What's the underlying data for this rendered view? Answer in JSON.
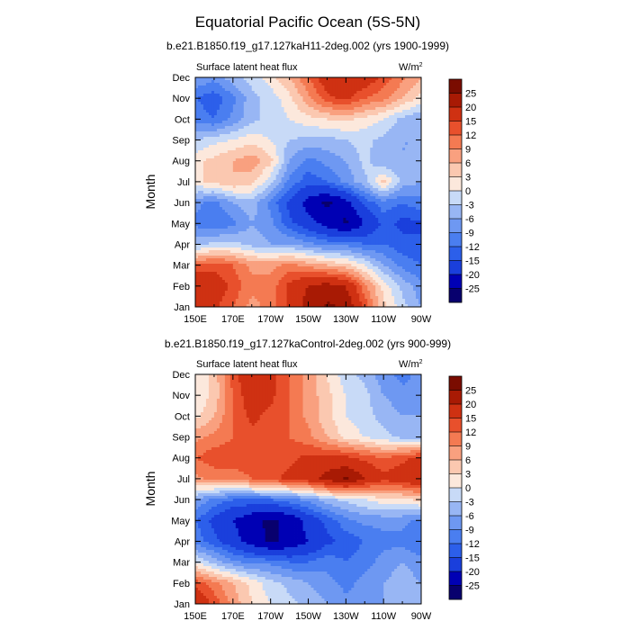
{
  "figure": {
    "title": "Equatorial Pacific Ocean (5S-5N)"
  },
  "colorbar": {
    "levels": [
      -25,
      -20,
      -15,
      -12,
      -9,
      -6,
      -3,
      0,
      3,
      6,
      9,
      12,
      15,
      20,
      25
    ],
    "labels": [
      "25",
      "20",
      "15",
      "12",
      "9",
      "6",
      "3",
      "0",
      "-3",
      "-6",
      "-9",
      "-12",
      "-15",
      "-20",
      "-25"
    ],
    "colors": [
      "#08006e",
      "#0000b4",
      "#1a3fdc",
      "#2c5fea",
      "#4a7ef0",
      "#6e98f2",
      "#98b6f4",
      "#c8daf7",
      "#fce8dc",
      "#fbc8b0",
      "#f9a07f",
      "#f47a52",
      "#e8502c",
      "#cf3112",
      "#a81a04",
      "#7a0c00"
    ]
  },
  "chart_data": [
    {
      "type": "heatmap",
      "id": "h11",
      "subtitle": "b.e21.B1850.f19_g17.127kaH11-2deg.002 (yrs 1900-1999)",
      "left_label": "Surface latent heat flux",
      "units_base": "W/m",
      "units_exp": "2",
      "ylabel": "Month",
      "xlabel": "",
      "x": [
        150,
        160,
        170,
        180,
        190,
        200,
        210,
        220,
        230,
        240,
        250,
        260,
        270
      ],
      "y": [
        "Jan",
        "Feb",
        "Mar",
        "Apr",
        "May",
        "Jun",
        "Jul",
        "Aug",
        "Sep",
        "Oct",
        "Nov",
        "Dec"
      ],
      "xticklabels": [
        "150E",
        "170E",
        "170W",
        "150W",
        "130W",
        "110W",
        "90W"
      ],
      "yticklabels": [
        "Jan",
        "Feb",
        "Mar",
        "Apr",
        "May",
        "Jun",
        "Jul",
        "Aug",
        "Sep",
        "Oct",
        "Nov",
        "Dec"
      ],
      "z": [
        [
          18,
          16,
          12,
          8,
          10,
          16,
          22,
          26,
          24,
          14,
          4,
          -2,
          -6
        ],
        [
          20,
          18,
          14,
          10,
          10,
          16,
          20,
          22,
          20,
          10,
          2,
          -4,
          -8
        ],
        [
          12,
          14,
          12,
          8,
          8,
          10,
          8,
          6,
          4,
          0,
          -6,
          -10,
          -12
        ],
        [
          -4,
          -2,
          -2,
          -4,
          -6,
          -6,
          -8,
          -10,
          -10,
          -12,
          -12,
          -14,
          -14
        ],
        [
          -10,
          -12,
          -10,
          -6,
          -8,
          -14,
          -18,
          -22,
          -26,
          -20,
          -14,
          -16,
          -16
        ],
        [
          -8,
          -10,
          -6,
          -4,
          -10,
          -16,
          -22,
          -26,
          -22,
          -14,
          -10,
          -12,
          -10
        ],
        [
          2,
          4,
          6,
          4,
          -2,
          -10,
          -14,
          -12,
          -8,
          -4,
          4,
          -4,
          -6
        ],
        [
          2,
          4,
          6,
          8,
          4,
          -6,
          -10,
          -8,
          -6,
          -2,
          -6,
          -6,
          -6
        ],
        [
          -3,
          -1,
          0,
          2,
          0,
          -3,
          -4,
          -4,
          -3,
          -2,
          -4,
          -6,
          -6
        ],
        [
          -10,
          -12,
          -8,
          -4,
          -2,
          0,
          2,
          3,
          4,
          2,
          0,
          -4,
          -6
        ],
        [
          -12,
          -14,
          -10,
          -4,
          -2,
          2,
          8,
          14,
          16,
          12,
          10,
          6,
          2
        ],
        [
          -6,
          -8,
          -4,
          -2,
          2,
          6,
          12,
          18,
          20,
          18,
          14,
          10,
          6
        ]
      ]
    },
    {
      "type": "heatmap",
      "id": "control",
      "subtitle": "b.e21.B1850.f19_g17.127kaControl-2deg.002 (yrs 900-999)",
      "left_label": "Surface latent heat flux",
      "units_base": "W/m",
      "units_exp": "2",
      "ylabel": "Month",
      "xlabel": "",
      "x": [
        150,
        160,
        170,
        180,
        190,
        200,
        210,
        220,
        230,
        240,
        250,
        260,
        270
      ],
      "y": [
        "Jan",
        "Feb",
        "Mar",
        "Apr",
        "May",
        "Jun",
        "Jul",
        "Aug",
        "Sep",
        "Oct",
        "Nov",
        "Dec"
      ],
      "xticklabels": [
        "150E",
        "170E",
        "170W",
        "150W",
        "130W",
        "110W",
        "90W"
      ],
      "yticklabels": [
        "Jan",
        "Feb",
        "Mar",
        "Apr",
        "May",
        "Jun",
        "Jul",
        "Aug",
        "Sep",
        "Oct",
        "Nov",
        "Dec"
      ],
      "z": [
        [
          20,
          14,
          8,
          3,
          0,
          -2,
          -4,
          -6,
          -8,
          -8,
          -6,
          -4,
          -6
        ],
        [
          14,
          10,
          6,
          2,
          -2,
          -4,
          -6,
          -8,
          -10,
          -8,
          -6,
          -4,
          -6
        ],
        [
          0,
          -4,
          -8,
          -10,
          -10,
          -12,
          -12,
          -10,
          -12,
          -10,
          -8,
          -6,
          -8
        ],
        [
          -10,
          -14,
          -18,
          -22,
          -26,
          -24,
          -20,
          -16,
          -14,
          -12,
          -10,
          -10,
          -12
        ],
        [
          -12,
          -16,
          -20,
          -24,
          -26,
          -24,
          -18,
          -14,
          -10,
          -8,
          -8,
          -8,
          -10
        ],
        [
          -6,
          -10,
          -12,
          -12,
          -12,
          -10,
          -8,
          -4,
          -2,
          0,
          2,
          2,
          4
        ],
        [
          8,
          10,
          10,
          12,
          14,
          16,
          18,
          22,
          26,
          20,
          16,
          18,
          20
        ],
        [
          12,
          14,
          14,
          14,
          14,
          14,
          16,
          16,
          16,
          14,
          12,
          14,
          16
        ],
        [
          8,
          10,
          12,
          14,
          14,
          12,
          10,
          6,
          2,
          0,
          -2,
          -4,
          -4
        ],
        [
          2,
          6,
          12,
          16,
          14,
          12,
          8,
          4,
          0,
          -2,
          -4,
          -6,
          -6
        ],
        [
          0,
          4,
          12,
          18,
          16,
          12,
          8,
          4,
          0,
          -2,
          -6,
          -8,
          -8
        ],
        [
          0,
          4,
          14,
          18,
          16,
          12,
          8,
          3,
          -2,
          -4,
          -8,
          -10,
          -8
        ]
      ]
    }
  ]
}
